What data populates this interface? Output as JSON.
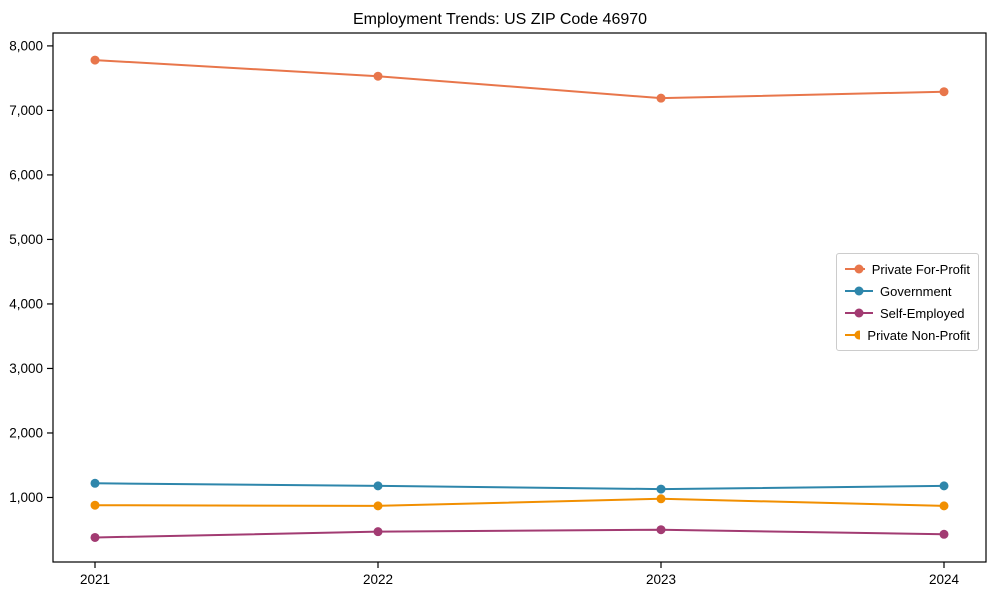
{
  "chart_data": {
    "type": "line",
    "title": "Employment Trends: US ZIP Code 46970",
    "x": [
      "2021",
      "2022",
      "2023",
      "2024"
    ],
    "series": [
      {
        "name": "Private For-Profit",
        "color": "#E8764B",
        "values": [
          7780,
          7530,
          7190,
          7290
        ]
      },
      {
        "name": "Government",
        "color": "#2E86AB",
        "values": [
          1220,
          1180,
          1130,
          1180
        ]
      },
      {
        "name": "Self-Employed",
        "color": "#A23B72",
        "values": [
          380,
          470,
          500,
          430
        ]
      },
      {
        "name": "Private Non-Profit",
        "color": "#F18F01",
        "values": [
          880,
          870,
          980,
          870
        ]
      }
    ],
    "xlabel": "",
    "ylabel": "",
    "ylim": [
      0,
      8200
    ],
    "yticks": [
      1000,
      2000,
      3000,
      4000,
      5000,
      6000,
      7000,
      8000
    ],
    "grid": false,
    "legend_position": "center-right",
    "axis_color": "#000000",
    "legend_border_color": "#cccccc"
  }
}
